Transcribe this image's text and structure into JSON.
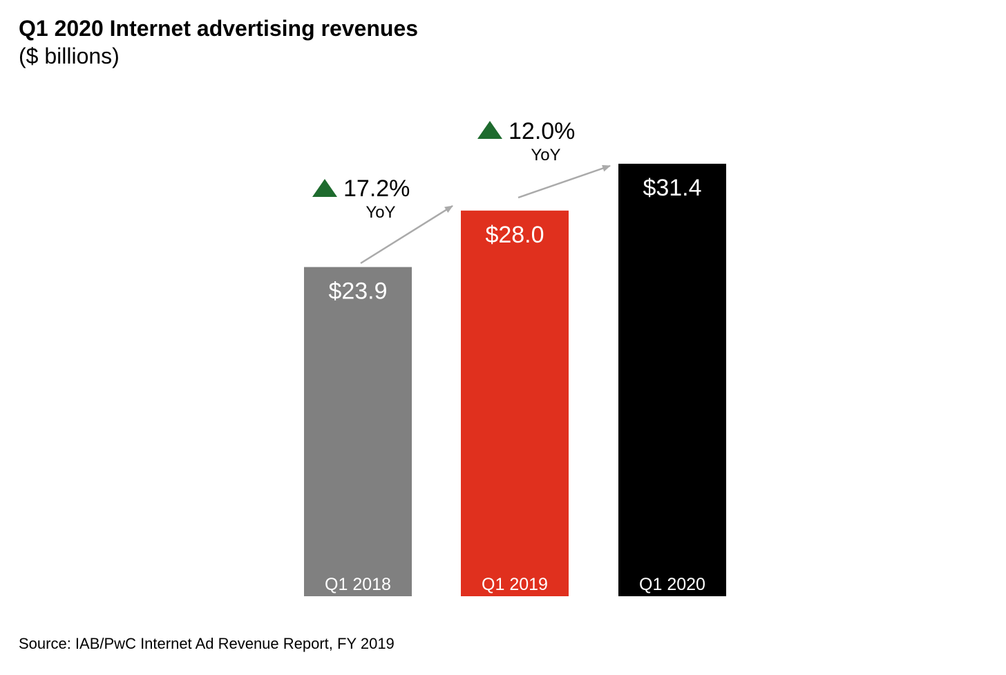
{
  "chart_data": {
    "type": "bar",
    "title": "Q1 2020 Internet advertising revenues",
    "subtitle": "($ billions)",
    "xlabel": "",
    "ylabel": "",
    "ylim": [
      0,
      31.4
    ],
    "grid": false,
    "categories": [
      "Q1 2018",
      "Q1 2019",
      "Q1 2020"
    ],
    "values": [
      23.9,
      28.0,
      31.4
    ],
    "value_labels": [
      "$23.9",
      "$28.0",
      "$31.4"
    ],
    "bar_colors": [
      "#808080",
      "#e0301e",
      "#000000"
    ],
    "annotations": [
      {
        "from": "Q1 2018",
        "to": "Q1 2019",
        "change": "17.2%",
        "label": "YoY"
      },
      {
        "from": "Q1 2019",
        "to": "Q1 2020",
        "change": "12.0%",
        "label": "YoY"
      }
    ],
    "source": "Source: IAB/PwC Internet Ad Revenue Report, FY 2019"
  },
  "colors": {
    "up_arrow": "#1e6b2e",
    "connector": "#aaaaaa",
    "bar_text": "#ffffff"
  }
}
